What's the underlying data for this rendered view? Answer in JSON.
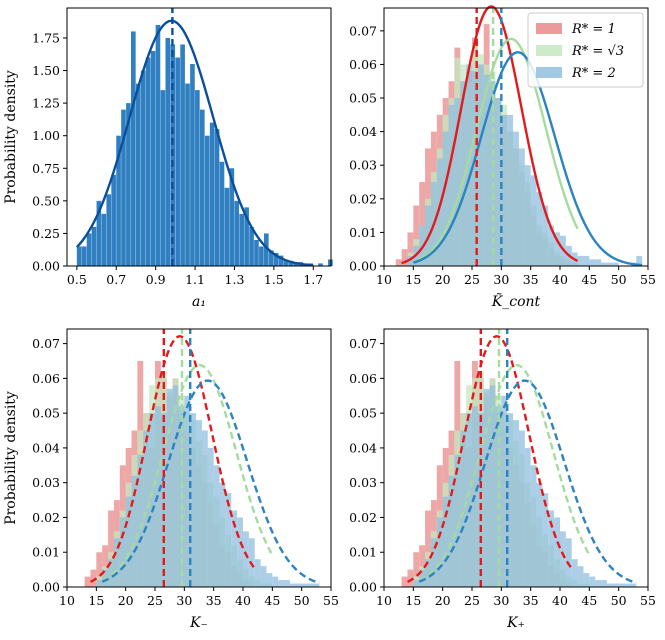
{
  "colors": {
    "a1_hist": "#2f7fc1",
    "a1_curve": "#0b4f9c",
    "r1": "#e31a1c",
    "r1_hist": "#e8898a",
    "r3": "#a6dba0",
    "r3_hist": "#c4e8bf",
    "r2": "#2b83c0",
    "r2_hist": "#90bfdf"
  },
  "legend": {
    "items": [
      {
        "label": "R* = 1",
        "key": "r1"
      },
      {
        "label": "R* = √3",
        "key": "r3"
      },
      {
        "label": "R* = 2",
        "key": "r2"
      }
    ]
  },
  "chart_data": [
    {
      "id": "a1",
      "type": "bar",
      "title": "",
      "xlabel": "a₁",
      "ylabel": "Probability density",
      "xlim": [
        0.45,
        1.79
      ],
      "ylim": [
        0,
        1.98
      ],
      "xticks": [
        0.5,
        0.7,
        0.9,
        1.1,
        1.3,
        1.5,
        1.7
      ],
      "xtick_labels": [
        "0.5",
        "0.7",
        "0.9",
        "1.1",
        "1.3",
        "1.5",
        "1.7"
      ],
      "yticks": [
        0,
        0.25,
        0.5,
        0.75,
        1.0,
        1.25,
        1.5,
        1.75
      ],
      "ytick_labels": [
        "0.00",
        "0.25",
        "0.50",
        "0.75",
        "1.00",
        "1.25",
        "1.50",
        "1.75"
      ],
      "curve_style": "solid",
      "series": [
        {
          "key": "a1",
          "name": "a1",
          "bin_start": 0.5,
          "bin_width": 0.025,
          "values": [
            0.15,
            0.15,
            0.25,
            0.3,
            0.5,
            0.4,
            0.55,
            0.7,
            1.0,
            1.2,
            1.25,
            1.8,
            1.4,
            1.5,
            1.6,
            1.65,
            1.85,
            1.35,
            1.75,
            1.7,
            1.6,
            1.7,
            1.4,
            1.55,
            1.35,
            1.2,
            1.0,
            1.1,
            1.05,
            0.8,
            0.6,
            0.75,
            0.5,
            0.4,
            0.45,
            0.3,
            0.2,
            0.15,
            0.25,
            0.12,
            0.1,
            0.08,
            0.04,
            0.04,
            0.03,
            0.03,
            0.02,
            0.02,
            0.0,
            0.02,
            0.0,
            0.05
          ],
          "fit_mean": 0.98,
          "fit_sd": 0.212,
          "fit_skew": 0.0,
          "median": 0.985
        }
      ]
    },
    {
      "id": "kcont",
      "type": "bar",
      "title": "",
      "xlabel": "K̃_cont",
      "ylabel": "",
      "xlim": [
        10,
        55
      ],
      "ylim": [
        0,
        0.0768
      ],
      "xticks": [
        10,
        15,
        20,
        25,
        30,
        35,
        40,
        45,
        50,
        55
      ],
      "xtick_labels": [
        "10",
        "15",
        "20",
        "25",
        "30",
        "35",
        "40",
        "45",
        "50",
        "55"
      ],
      "yticks": [
        0,
        0.01,
        0.02,
        0.03,
        0.04,
        0.05,
        0.06,
        0.07
      ],
      "ytick_labels": [
        "0.00",
        "0.01",
        "0.02",
        "0.03",
        "0.04",
        "0.05",
        "0.06",
        "0.07"
      ],
      "curve_style": "solid",
      "series": [
        {
          "key": "r1",
          "name": "R* = 1",
          "bin_start": 12,
          "bin_width": 1,
          "values": [
            0.002,
            0.005,
            0.01,
            0.018,
            0.025,
            0.035,
            0.04,
            0.045,
            0.05,
            0.055,
            0.065,
            0.055,
            0.058,
            0.068,
            0.06,
            0.072,
            0.055,
            0.05,
            0.045,
            0.04,
            0.035,
            0.028,
            0.022,
            0.015,
            0.01,
            0.008,
            0.005,
            0.003,
            0.002,
            0.001,
            0.001
          ],
          "fit_mean": 26.2,
          "fit_sd": 5.6,
          "fit_skew": 0.55,
          "median": 25.8
        },
        {
          "key": "r3",
          "name": "R* = √3",
          "bin_start": 14,
          "bin_width": 1,
          "values": [
            0.004,
            0.008,
            0.012,
            0.02,
            0.028,
            0.035,
            0.045,
            0.05,
            0.062,
            0.06,
            0.055,
            0.066,
            0.063,
            0.06,
            0.058,
            0.05,
            0.048,
            0.04,
            0.035,
            0.03,
            0.025,
            0.018,
            0.012,
            0.01,
            0.007,
            0.004,
            0.003,
            0.002,
            0.001
          ],
          "fit_mean": 29.3,
          "fit_sd": 6.4,
          "fit_skew": 0.55,
          "median": 28.6
        },
        {
          "key": "r2",
          "name": "R* = 2",
          "bin_start": 14,
          "bin_width": 1,
          "values": [
            0.003,
            0.006,
            0.012,
            0.018,
            0.025,
            0.032,
            0.04,
            0.048,
            0.05,
            0.055,
            0.06,
            0.058,
            0.06,
            0.057,
            0.055,
            0.05,
            0.045,
            0.045,
            0.04,
            0.035,
            0.03,
            0.027,
            0.022,
            0.018,
            0.012,
            0.01,
            0.009,
            0.006,
            0.004,
            0.003,
            0.003,
            0.002,
            0.002,
            0.001,
            0.001,
            0.001,
            0.0,
            0.0,
            0.001,
            0.003
          ],
          "fit_mean": 30.3,
          "fit_sd": 6.8,
          "fit_skew": 0.55,
          "median": 30.0
        }
      ]
    },
    {
      "id": "kminus",
      "type": "bar",
      "title": "",
      "xlabel": "K₋",
      "ylabel": "Probability density",
      "xlim": [
        10,
        55
      ],
      "ylim": [
        0,
        0.0742
      ],
      "xticks": [
        10,
        15,
        20,
        25,
        30,
        35,
        40,
        45,
        50,
        55
      ],
      "xtick_labels": [
        "10",
        "15",
        "20",
        "25",
        "30",
        "35",
        "40",
        "45",
        "50",
        "55"
      ],
      "yticks": [
        0,
        0.01,
        0.02,
        0.03,
        0.04,
        0.05,
        0.06,
        0.07
      ],
      "ytick_labels": [
        "0.00",
        "0.01",
        "0.02",
        "0.03",
        "0.04",
        "0.05",
        "0.06",
        "0.07"
      ],
      "curve_style": "dashed",
      "series": [
        {
          "key": "r1",
          "name": "R* = 1",
          "bin_start": 13,
          "bin_width": 1,
          "values": [
            0.003,
            0.005,
            0.01,
            0.012,
            0.022,
            0.025,
            0.035,
            0.04,
            0.045,
            0.065,
            0.05,
            0.04,
            0.065,
            0.06,
            0.055,
            0.06,
            0.05,
            0.045,
            0.04,
            0.035,
            0.03,
            0.024,
            0.018,
            0.012,
            0.01,
            0.006,
            0.004,
            0.002,
            0.001
          ],
          "fit_mean": 27.0,
          "fit_sd": 6.0,
          "fit_skew": 0.55,
          "median": 26.5
        },
        {
          "key": "r3",
          "name": "R* = √3",
          "bin_start": 15,
          "bin_width": 1,
          "values": [
            0.003,
            0.006,
            0.01,
            0.016,
            0.022,
            0.03,
            0.038,
            0.045,
            0.05,
            0.058,
            0.06,
            0.062,
            0.056,
            0.06,
            0.055,
            0.05,
            0.048,
            0.042,
            0.038,
            0.03,
            0.026,
            0.02,
            0.015,
            0.012,
            0.008,
            0.005,
            0.003,
            0.002,
            0.001,
            0.001
          ],
          "fit_mean": 30.3,
          "fit_sd": 6.7,
          "fit_skew": 0.5,
          "median": 29.6
        },
        {
          "key": "r2",
          "name": "R* = 2",
          "bin_start": 15,
          "bin_width": 1,
          "values": [
            0.002,
            0.005,
            0.008,
            0.014,
            0.02,
            0.026,
            0.032,
            0.038,
            0.045,
            0.05,
            0.052,
            0.05,
            0.057,
            0.058,
            0.052,
            0.055,
            0.05,
            0.048,
            0.045,
            0.04,
            0.035,
            0.03,
            0.027,
            0.022,
            0.02,
            0.016,
            0.014,
            0.008,
            0.006,
            0.004,
            0.003,
            0.002,
            0.002,
            0.001,
            0.001,
            0.001,
            0.001,
            0.001
          ],
          "fit_mean": 31.5,
          "fit_sd": 7.2,
          "fit_skew": 0.5,
          "median": 31.0
        }
      ]
    },
    {
      "id": "kplus",
      "type": "bar",
      "title": "",
      "xlabel": "K₊",
      "ylabel": "",
      "xlim": [
        10,
        55
      ],
      "ylim": [
        0,
        0.0742
      ],
      "xticks": [
        10,
        15,
        20,
        25,
        30,
        35,
        40,
        45,
        50,
        55
      ],
      "xtick_labels": [
        "10",
        "15",
        "20",
        "25",
        "30",
        "35",
        "40",
        "45",
        "50",
        "55"
      ],
      "yticks": [
        0,
        0.01,
        0.02,
        0.03,
        0.04,
        0.05,
        0.06,
        0.07
      ],
      "ytick_labels": [
        "0.00",
        "0.01",
        "0.02",
        "0.03",
        "0.04",
        "0.05",
        "0.06",
        "0.07"
      ],
      "curve_style": "dashed",
      "series": [
        {
          "key": "r1",
          "name": "R* = 1",
          "bin_start": 13,
          "bin_width": 1,
          "values": [
            0.003,
            0.005,
            0.01,
            0.012,
            0.022,
            0.025,
            0.035,
            0.04,
            0.045,
            0.065,
            0.05,
            0.04,
            0.065,
            0.06,
            0.055,
            0.06,
            0.05,
            0.045,
            0.04,
            0.035,
            0.03,
            0.024,
            0.018,
            0.012,
            0.01,
            0.006,
            0.004,
            0.002,
            0.001
          ],
          "fit_mean": 27.0,
          "fit_sd": 6.0,
          "fit_skew": 0.55,
          "median": 26.5
        },
        {
          "key": "r3",
          "name": "R* = √3",
          "bin_start": 15,
          "bin_width": 1,
          "values": [
            0.003,
            0.006,
            0.01,
            0.016,
            0.022,
            0.03,
            0.038,
            0.045,
            0.05,
            0.058,
            0.06,
            0.062,
            0.056,
            0.06,
            0.055,
            0.05,
            0.048,
            0.042,
            0.038,
            0.03,
            0.026,
            0.02,
            0.015,
            0.012,
            0.008,
            0.005,
            0.003,
            0.002,
            0.001,
            0.001
          ],
          "fit_mean": 30.3,
          "fit_sd": 6.7,
          "fit_skew": 0.5,
          "median": 29.6
        },
        {
          "key": "r2",
          "name": "R* = 2",
          "bin_start": 15,
          "bin_width": 1,
          "values": [
            0.002,
            0.005,
            0.008,
            0.014,
            0.02,
            0.026,
            0.032,
            0.038,
            0.045,
            0.05,
            0.052,
            0.05,
            0.057,
            0.058,
            0.052,
            0.055,
            0.05,
            0.048,
            0.045,
            0.04,
            0.035,
            0.03,
            0.027,
            0.022,
            0.02,
            0.016,
            0.014,
            0.008,
            0.006,
            0.004,
            0.003,
            0.002,
            0.002,
            0.001,
            0.001,
            0.001,
            0.001,
            0.001
          ],
          "fit_mean": 31.5,
          "fit_sd": 7.2,
          "fit_skew": 0.5,
          "median": 31.0
        }
      ]
    }
  ]
}
